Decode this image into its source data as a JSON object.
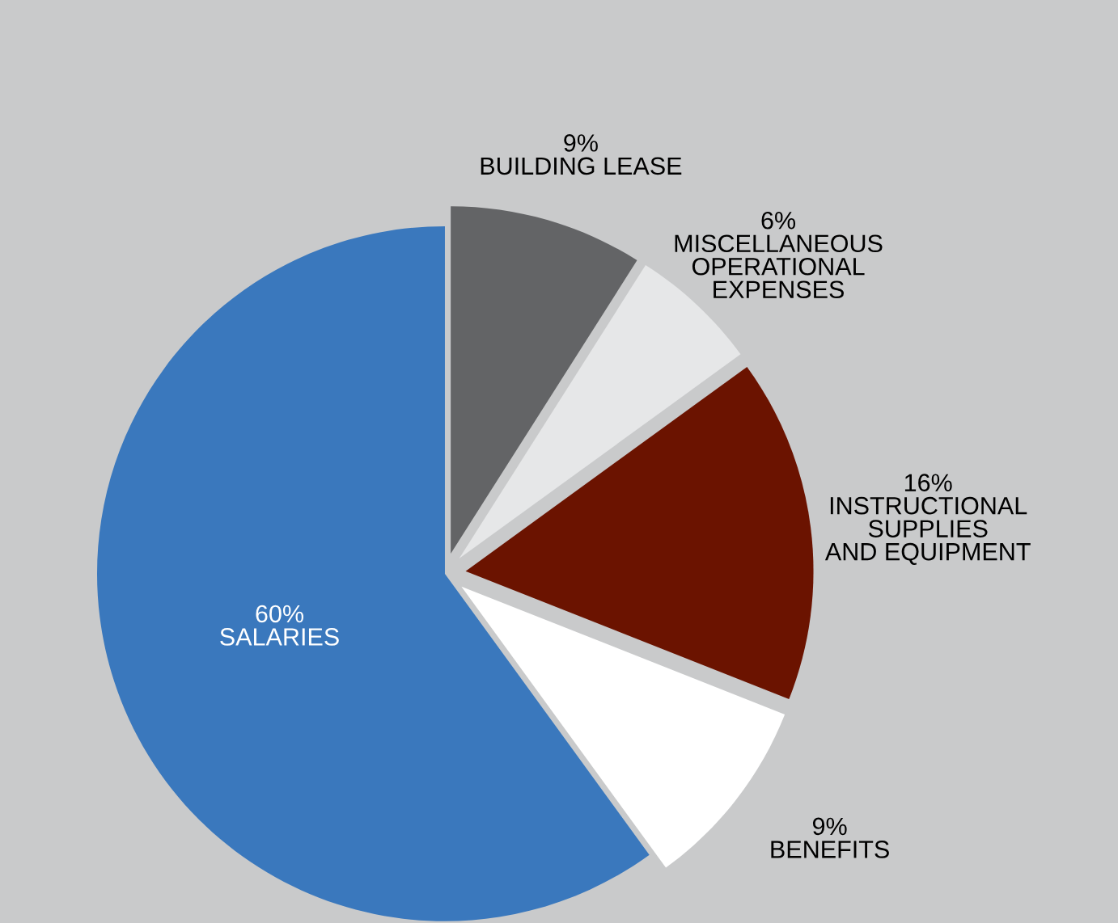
{
  "chart_data": {
    "type": "pie",
    "categories": [
      "BUILDING LEASE",
      "MISCELLANEOUS\nOPERATIONAL\nEXPENSES",
      "INSTRUCTIONAL\nSUPPLIES\nAND EQUIPMENT",
      "BENEFITS",
      "SALARIES"
    ],
    "values": [
      9,
      6,
      16,
      9,
      60
    ],
    "value_labels": [
      "9%",
      "6%",
      "16%",
      "9%",
      "60%"
    ],
    "colors": [
      "#636466",
      "#e6e7e8",
      "#6b1300",
      "#ffffff",
      "#3a78bd"
    ]
  }
}
